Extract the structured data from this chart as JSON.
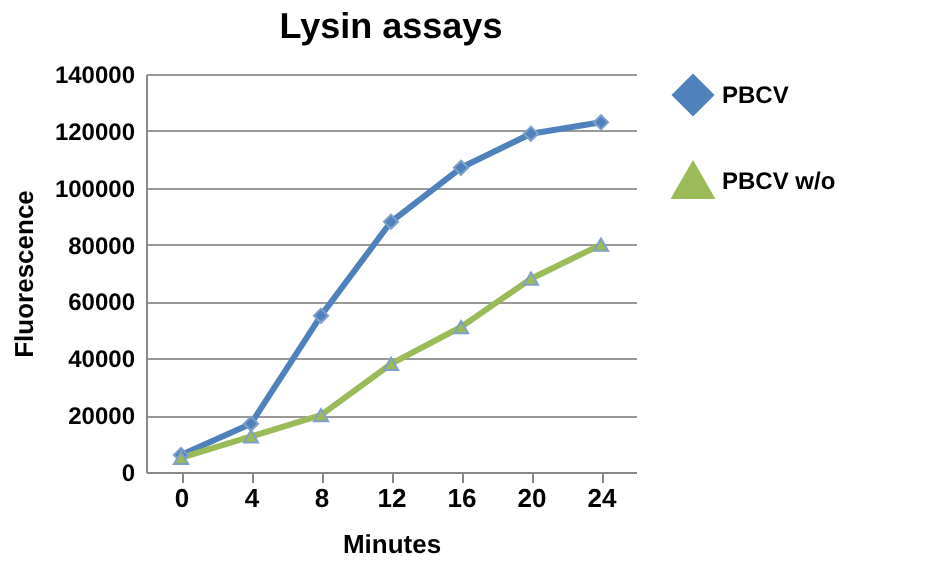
{
  "chart_data": {
    "type": "line",
    "title": "Lysin assays",
    "xlabel": "Minutes",
    "ylabel": "Fluorescence",
    "categories": [
      "0",
      "4",
      "8",
      "12",
      "16",
      "20",
      "24"
    ],
    "series": [
      {
        "name": "PBCV",
        "color": "#4f81bd",
        "marker": "diamond",
        "values": [
          6000,
          17000,
          55000,
          88000,
          107000,
          119000,
          123000
        ]
      },
      {
        "name": "PBCV w/o",
        "color": "#9bbb59",
        "marker": "triangle",
        "values": [
          5000,
          12500,
          20000,
          38000,
          51000,
          68000,
          80000
        ]
      }
    ],
    "ylim": [
      0,
      140000
    ],
    "yticks": [
      0,
      20000,
      40000,
      60000,
      80000,
      100000,
      120000,
      140000
    ],
    "grid": "y",
    "legend": "right"
  }
}
